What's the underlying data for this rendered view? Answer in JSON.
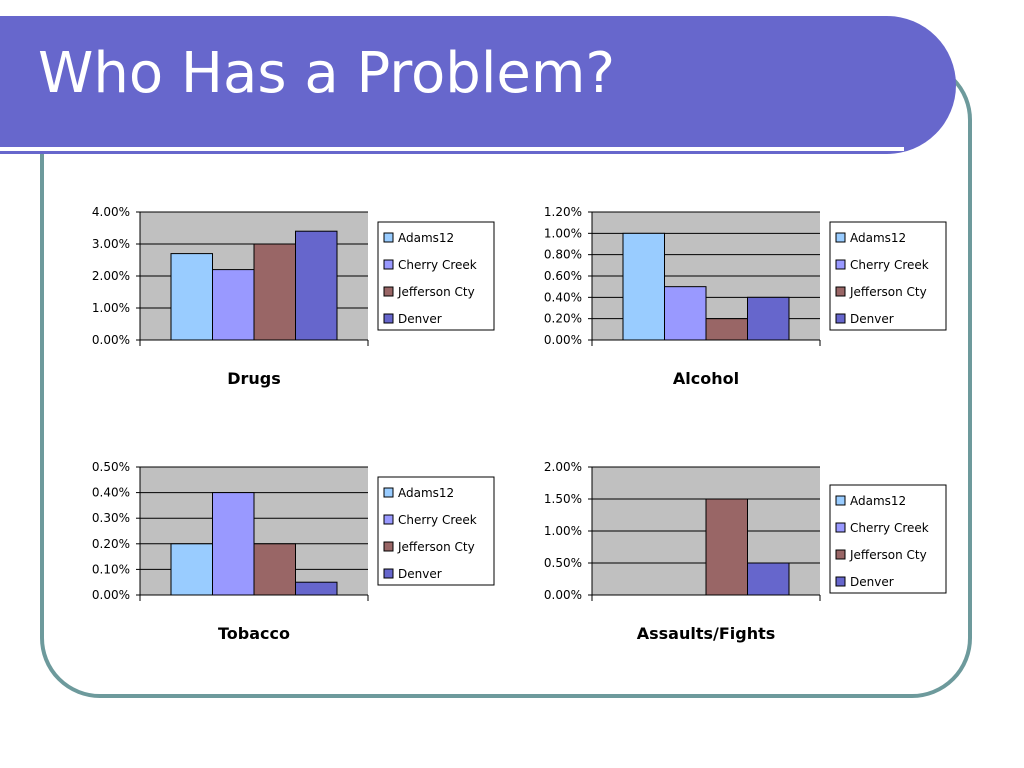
{
  "slide": {
    "title": "Who Has a Problem?",
    "colors": {
      "banner": "#6767cc",
      "frame_border": "#6d9a9c",
      "plot_background": "#c0c0c0"
    }
  },
  "chart_data": [
    {
      "type": "bar",
      "xlabel": "Drugs",
      "categories": [
        "Adams12",
        "Cherry Creek",
        "Jefferson Cty",
        "Denver"
      ],
      "values": [
        2.7,
        2.2,
        3.0,
        3.4
      ],
      "unit": "%",
      "ylim": [
        0,
        4
      ],
      "yticks": [
        "0.00%",
        "1.00%",
        "2.00%",
        "3.00%",
        "4.00%"
      ],
      "grid": true,
      "legend": "right",
      "colors": [
        "#99ccff",
        "#9999ff",
        "#996666",
        "#6666cc"
      ]
    },
    {
      "type": "bar",
      "xlabel": "Alcohol",
      "categories": [
        "Adams12",
        "Cherry Creek",
        "Jefferson Cty",
        "Denver"
      ],
      "values": [
        1.0,
        0.5,
        0.2,
        0.4
      ],
      "unit": "%",
      "ylim": [
        0,
        1.2
      ],
      "yticks": [
        "0.00%",
        "0.20%",
        "0.40%",
        "0.60%",
        "0.80%",
        "1.00%",
        "1.20%"
      ],
      "grid": true,
      "legend": "right",
      "colors": [
        "#99ccff",
        "#9999ff",
        "#996666",
        "#6666cc"
      ]
    },
    {
      "type": "bar",
      "xlabel": "Tobacco",
      "categories": [
        "Adams12",
        "Cherry Creek",
        "Jefferson Cty",
        "Denver"
      ],
      "values": [
        0.2,
        0.4,
        0.2,
        0.05
      ],
      "unit": "%",
      "ylim": [
        0,
        0.5
      ],
      "yticks": [
        "0.00%",
        "0.10%",
        "0.20%",
        "0.30%",
        "0.40%",
        "0.50%"
      ],
      "grid": true,
      "legend": "right",
      "colors": [
        "#99ccff",
        "#9999ff",
        "#996666",
        "#6666cc"
      ]
    },
    {
      "type": "bar",
      "xlabel": "Assaults/Fights",
      "categories": [
        "Adams12",
        "Cherry Creek",
        "Jefferson Cty",
        "Denver"
      ],
      "values": [
        0,
        0,
        1.5,
        0.5
      ],
      "unit": "%",
      "ylim": [
        0,
        2
      ],
      "yticks": [
        "0.00%",
        "0.50%",
        "1.00%",
        "1.50%",
        "2.00%"
      ],
      "grid": true,
      "legend": "right",
      "colors": [
        "#99ccff",
        "#9999ff",
        "#996666",
        "#6666cc"
      ]
    }
  ]
}
